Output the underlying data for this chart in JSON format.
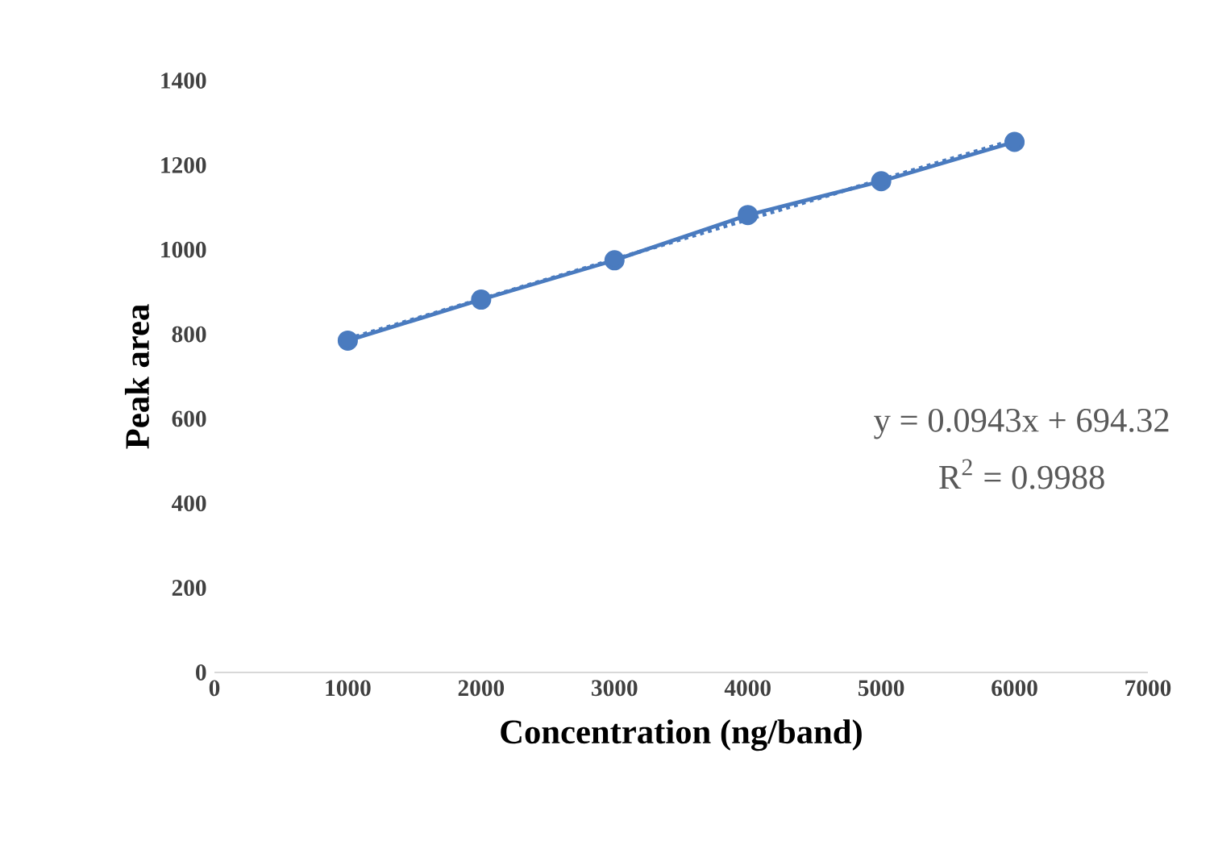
{
  "chart_data": {
    "type": "line",
    "xlabel": "Concentration (ng/band)",
    "ylabel": "Peak area",
    "xlim": [
      0,
      7000
    ],
    "ylim": [
      0,
      1400
    ],
    "xticks": [
      0,
      1000,
      2000,
      3000,
      4000,
      5000,
      6000,
      7000
    ],
    "yticks": [
      0,
      200,
      400,
      600,
      800,
      1000,
      1200,
      1400
    ],
    "grid": false,
    "series": [
      {
        "color": "#4a7bbf",
        "x": [
          1000,
          2000,
          3000,
          4000,
          5000,
          6000
        ],
        "values": [
          785,
          882,
          975,
          1082,
          1162,
          1255
        ],
        "marker": "circle",
        "line_style": "solid"
      },
      {
        "type": "line",
        "color": "#4a7bbf",
        "x": [
          1000,
          6000
        ],
        "values": [
          789,
          1260
        ],
        "marker": "none",
        "line_style": "dotted"
      }
    ],
    "annotations": [
      "y = 0.0943x + 694.32",
      "R$^{2}$ = 0.9988"
    ]
  }
}
